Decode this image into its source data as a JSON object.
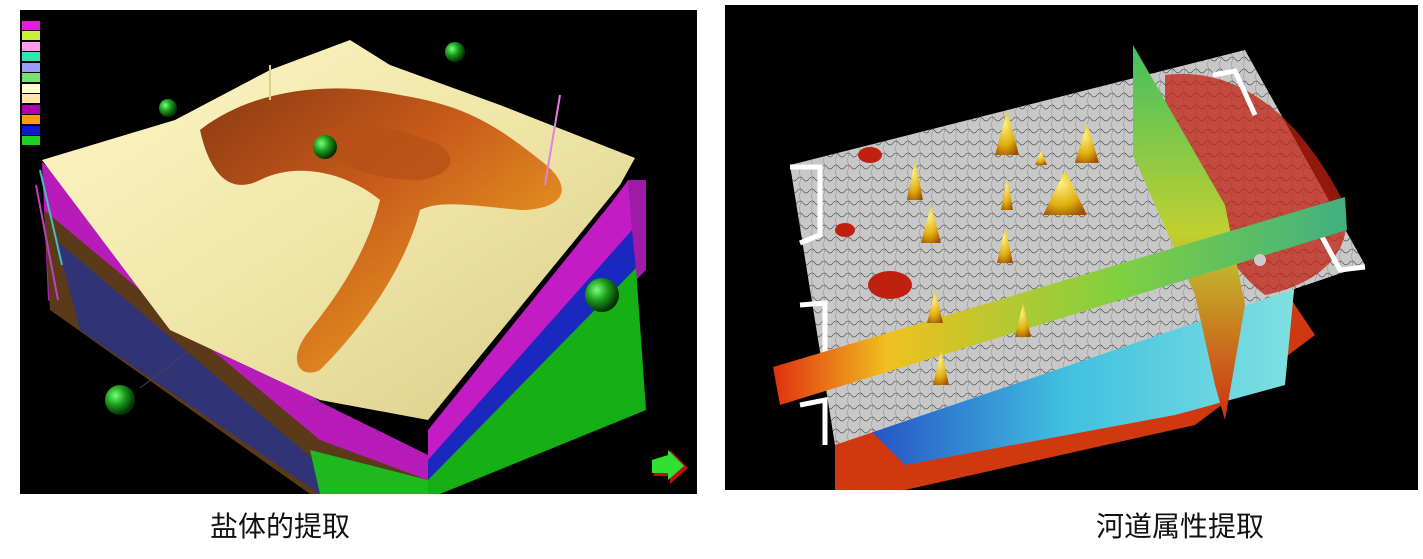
{
  "left_figure": {
    "caption": "盐体的提取",
    "legend": {
      "title": "",
      "swatch_colors": [
        "#e21ce0",
        "#c8f03a",
        "#ff9be8",
        "#2fe6b4",
        "#9a9cff",
        "#72e36c",
        "#ffffd0",
        "#ffe6a8",
        "#b000b0",
        "#ff9c00",
        "#0a1ad0",
        "#20d020"
      ]
    }
  },
  "right_figure": {
    "caption": "河道属性提取"
  },
  "colors": {
    "panel_background": "#000000",
    "page_background": "#ffffff"
  }
}
